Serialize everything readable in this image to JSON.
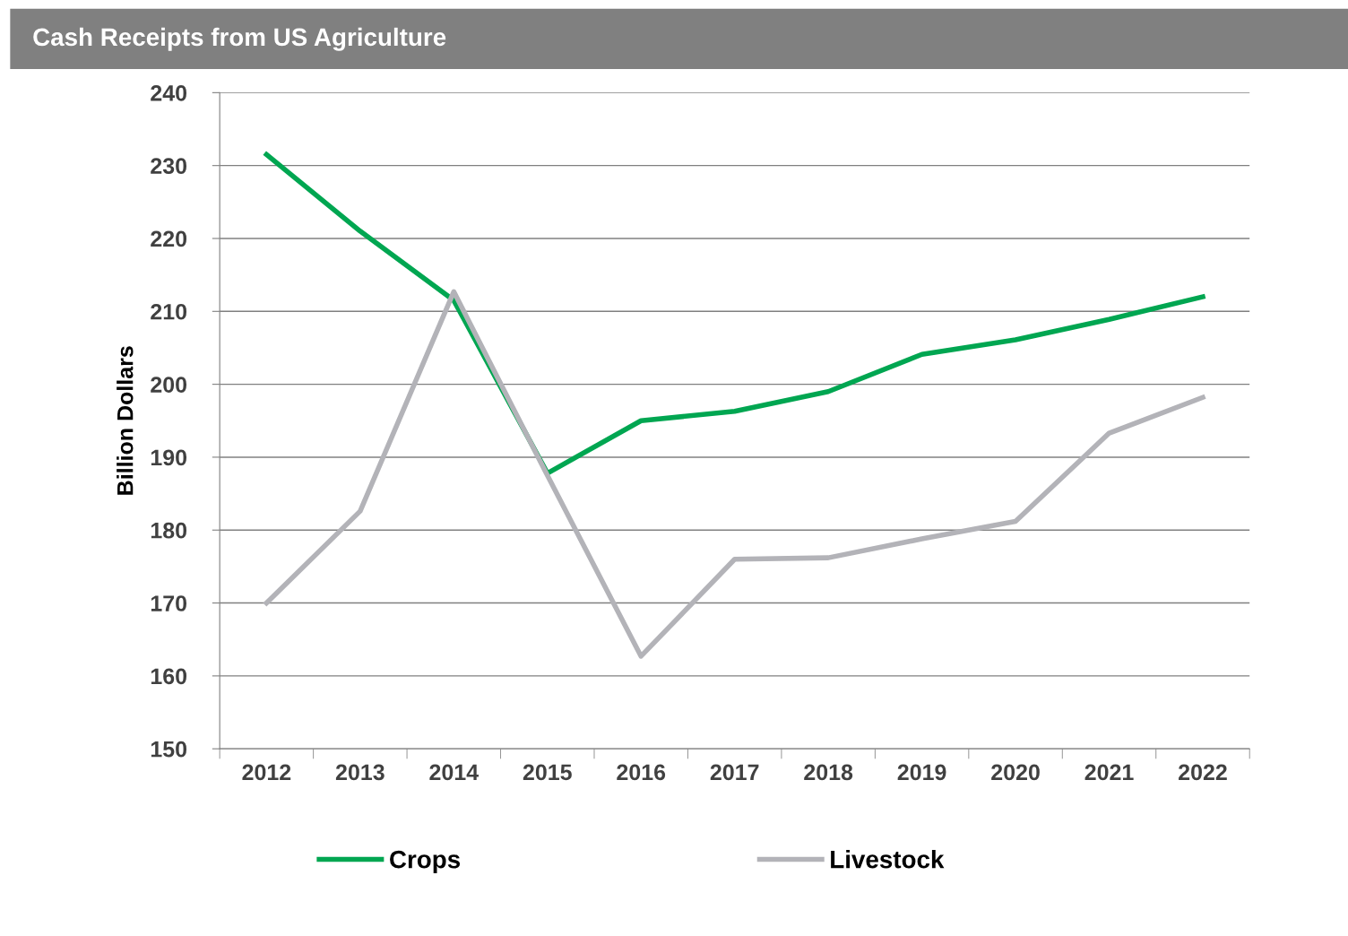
{
  "chart_data": {
    "type": "line",
    "title": "Cash Receipts from US Agriculture",
    "ylabel": "Billion Dollars",
    "categories": [
      "2012",
      "2013",
      "2014",
      "2015",
      "2016",
      "2017",
      "2018",
      "2019",
      "2020",
      "2021",
      "2022"
    ],
    "series": [
      {
        "name": "Crops",
        "color": "#00a651",
        "values": [
          231.5,
          221,
          211.5,
          187.8,
          195,
          196.3,
          199,
          204.1,
          206.1,
          208.9,
          212
        ]
      },
      {
        "name": "Livestock",
        "color": "#b3b3b8",
        "values": [
          170,
          182.6,
          212.7,
          187.5,
          162.7,
          176,
          176.2,
          178.8,
          181.2,
          193.3,
          198.2
        ]
      }
    ],
    "ylim": [
      150,
      240
    ],
    "yticks": [
      150,
      160,
      170,
      180,
      190,
      200,
      210,
      220,
      230,
      240
    ],
    "grid": "y",
    "legend": "bottom",
    "marker": "none",
    "line_style": "solid"
  }
}
